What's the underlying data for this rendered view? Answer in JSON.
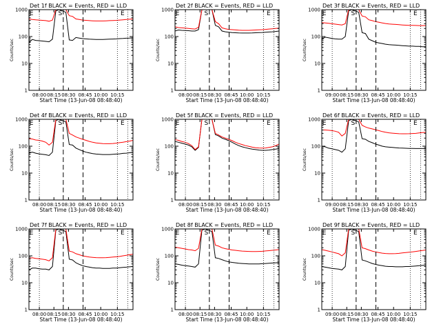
{
  "chart_data": [
    {
      "type": "line",
      "title": "Det 1f BLACK = Events, RED = LLD",
      "xlabel": "Start Time (13-Jun-08 08:48:40)",
      "ylabel": "Counts/sec",
      "yscale": "log",
      "ylim": [
        1,
        1000
      ],
      "y_ticks": [
        "1",
        "10",
        "100",
        "1000"
      ],
      "x_ticks": [
        "08:00",
        "08:15",
        "08:30",
        "08:45",
        "10:00",
        "10:15"
      ],
      "markers": [
        "E",
        "S",
        "E"
      ],
      "series": [
        {
          "color": "#000000",
          "values": [
            60,
            78,
            72,
            70,
            68,
            66,
            64,
            80,
            900,
            1000,
            900,
            800,
            75,
            72,
            92,
            88,
            84,
            82,
            80,
            79,
            78,
            78,
            78,
            79,
            80,
            81,
            82,
            84,
            85,
            87,
            88,
            90
          ]
        },
        {
          "color": "#ff0000",
          "values": [
            450,
            430,
            420,
            410,
            400,
            390,
            370,
            410,
            1000,
            1000,
            1000,
            1000,
            600,
            560,
            450,
            430,
            410,
            400,
            390,
            385,
            380,
            380,
            380,
            385,
            390,
            395,
            400,
            410,
            420,
            430,
            440,
            450
          ]
        }
      ]
    },
    {
      "type": "line",
      "title": "Det 2f BLACK = Events, RED = LLD",
      "xlabel": "Start Time (13-Jun-08 08:48:40)",
      "ylabel": "Counts/sec",
      "yscale": "log",
      "ylim": [
        1,
        1000
      ],
      "y_ticks": [
        "1",
        "10",
        "100",
        "1000"
      ],
      "x_ticks": [
        "08:00",
        "08:15",
        "08:30",
        "08:45",
        "10:00",
        "10:15"
      ],
      "markers": [
        "E",
        "S",
        "E"
      ],
      "series": [
        {
          "color": "#000000",
          "values": [
            160,
            175,
            170,
            168,
            165,
            160,
            160,
            180,
            1000,
            1000,
            1000,
            1000,
            260,
            230,
            160,
            150,
            145,
            140,
            138,
            136,
            135,
            135,
            135,
            136,
            138,
            140,
            142,
            145,
            148,
            150,
            155,
            160
          ]
        },
        {
          "color": "#ff0000",
          "values": [
            230,
            215,
            210,
            205,
            200,
            195,
            190,
            220,
            1000,
            1000,
            1000,
            1000,
            360,
            300,
            210,
            195,
            185,
            180,
            176,
            172,
            170,
            170,
            170,
            172,
            175,
            178,
            180,
            185,
            190,
            195,
            200,
            205
          ]
        }
      ]
    },
    {
      "type": "line",
      "title": "Det 3f BLACK = Events, RED = LLD",
      "xlabel": "Start Time (13-Jun-08 08:48:40)",
      "ylabel": "Counts/sec",
      "yscale": "log",
      "ylim": [
        1,
        1000
      ],
      "y_ticks": [
        "1",
        "10",
        "100",
        "1000"
      ],
      "x_ticks": [
        "09:00",
        "08:15",
        "08:30",
        "08:45",
        "10:00",
        "10:15"
      ],
      "markers": [
        "E",
        "S",
        "E"
      ],
      "series": [
        {
          "color": "#000000",
          "values": [
            80,
            95,
            90,
            85,
            82,
            80,
            80,
            100,
            900,
            1000,
            900,
            800,
            140,
            130,
            80,
            70,
            62,
            58,
            55,
            52,
            50,
            49,
            48,
            47,
            46,
            45,
            44,
            44,
            43,
            43,
            42,
            42
          ]
        },
        {
          "color": "#ff0000",
          "values": [
            330,
            320,
            310,
            300,
            290,
            280,
            270,
            300,
            1000,
            1000,
            1000,
            1000,
            580,
            540,
            420,
            390,
            360,
            340,
            320,
            305,
            295,
            288,
            282,
            276,
            270,
            265,
            262,
            260,
            258,
            256,
            255,
            255
          ]
        }
      ]
    },
    {
      "type": "line",
      "title": "Det 4f BLACK = Events, RED = LLD",
      "xlabel": "Start Time (13-Jun-08 08:48:40)",
      "ylabel": "Counts/sec",
      "yscale": "log",
      "ylim": [
        1,
        1000
      ],
      "y_ticks": [
        "1",
        "10",
        "100",
        "1000"
      ],
      "x_ticks": [
        "08:00",
        "08:15",
        "08:30",
        "08:45",
        "10:00",
        "10:15"
      ],
      "markers": [
        "E",
        "S",
        "E"
      ],
      "series": [
        {
          "color": "#000000",
          "values": [
            55,
            60,
            55,
            52,
            50,
            48,
            45,
            60,
            900,
            1000,
            900,
            800,
            115,
            110,
            85,
            75,
            66,
            60,
            56,
            53,
            51,
            50,
            49,
            49,
            49,
            50,
            51,
            52,
            54,
            55,
            57,
            60
          ]
        },
        {
          "color": "#ff0000",
          "values": [
            190,
            185,
            170,
            165,
            155,
            140,
            110,
            140,
            1000,
            1000,
            1000,
            1000,
            300,
            260,
            220,
            200,
            180,
            165,
            150,
            140,
            132,
            128,
            125,
            124,
            124,
            126,
            130,
            135,
            140,
            148,
            155,
            165
          ]
        }
      ]
    },
    {
      "type": "line",
      "title": "Det 5f BLACK = Events, RED = LLD",
      "xlabel": "Start Time (13-Jun-08 08:48:40)",
      "ylabel": "Counts/sec",
      "yscale": "log",
      "ylim": [
        1,
        1000
      ],
      "y_ticks": [
        "1",
        "10",
        "100",
        "1000"
      ],
      "x_ticks": [
        "08:00",
        "08:15",
        "08:30",
        "08:45",
        "10:00",
        "10:15"
      ],
      "markers": [
        "E",
        "S",
        "E"
      ],
      "series": [
        {
          "color": "#000000",
          "values": [
            150,
            140,
            130,
            120,
            110,
            95,
            70,
            90,
            1000,
            1000,
            1000,
            1000,
            270,
            240,
            200,
            180,
            160,
            140,
            120,
            105,
            95,
            88,
            82,
            78,
            75,
            72,
            70,
            70,
            72,
            75,
            78,
            82
          ]
        },
        {
          "color": "#ff0000",
          "values": [
            175,
            165,
            150,
            140,
            125,
            105,
            75,
            95,
            1000,
            1000,
            1000,
            1000,
            300,
            260,
            220,
            200,
            180,
            160,
            140,
            125,
            115,
            105,
            98,
            92,
            88,
            86,
            85,
            86,
            90,
            95,
            105,
            120
          ]
        }
      ]
    },
    {
      "type": "line",
      "title": "Det 6f BLACK = Events, RED = LLD",
      "xlabel": "Start Time (13-Jun-08 08:48:40)",
      "ylabel": "Counts/sec",
      "yscale": "log",
      "ylim": [
        1,
        1000
      ],
      "y_ticks": [
        "1",
        "10",
        "100",
        "1000"
      ],
      "x_ticks": [
        "09:00",
        "08:15",
        "08:30",
        "08:45",
        "10:00",
        "10:15"
      ],
      "markers": [
        "E",
        "S",
        "E"
      ],
      "series": [
        {
          "color": "#000000",
          "values": [
            100,
            95,
            85,
            80,
            75,
            70,
            60,
            80,
            900,
            1000,
            900,
            800,
            190,
            180,
            150,
            135,
            120,
            110,
            100,
            95,
            92,
            90,
            88,
            86,
            85,
            84,
            83,
            83,
            82,
            82,
            82,
            82
          ]
        },
        {
          "color": "#ff0000",
          "values": [
            400,
            400,
            390,
            380,
            360,
            330,
            240,
            300,
            1000,
            1000,
            1000,
            1000,
            600,
            520,
            470,
            440,
            410,
            380,
            350,
            330,
            315,
            305,
            298,
            292,
            290,
            290,
            292,
            296,
            300,
            310,
            320,
            330
          ]
        }
      ]
    },
    {
      "type": "line",
      "title": "Det 7f BLACK = Events, RED = LLD",
      "xlabel": "Start Time (13-Jun-08 08:48:40)",
      "ylabel": "Counts/sec",
      "yscale": "log",
      "ylim": [
        1,
        1000
      ],
      "y_ticks": [
        "1",
        "10",
        "100",
        "1000"
      ],
      "x_ticks": [
        "08:00",
        "08:15",
        "08:30",
        "08:45",
        "10:00",
        "10:15"
      ],
      "markers": [
        "E",
        "S",
        "E"
      ],
      "series": [
        {
          "color": "#000000",
          "values": [
            30,
            35,
            35,
            33,
            32,
            32,
            30,
            40,
            900,
            1000,
            900,
            800,
            75,
            70,
            55,
            48,
            43,
            40,
            38,
            36,
            35,
            35,
            34,
            34,
            34,
            35,
            35,
            36,
            37,
            38,
            39,
            40
          ]
        },
        {
          "color": "#ff0000",
          "values": [
            80,
            85,
            80,
            78,
            75,
            72,
            65,
            85,
            1000,
            1000,
            1000,
            1000,
            150,
            140,
            120,
            110,
            100,
            95,
            90,
            88,
            86,
            85,
            85,
            86,
            88,
            90,
            92,
            95,
            100,
            105,
            110,
            115
          ]
        }
      ]
    },
    {
      "type": "line",
      "title": "Det 8f BLACK = Events, RED = LLD",
      "xlabel": "Start Time (13-Jun-08 08:48:40)",
      "ylabel": "Counts/sec",
      "yscale": "log",
      "ylim": [
        1,
        1000
      ],
      "y_ticks": [
        "1",
        "10",
        "100",
        "1000"
      ],
      "x_ticks": [
        "08:00",
        "08:15",
        "08:30",
        "08:45",
        "10:00",
        "10:15"
      ],
      "markers": [
        "E",
        "S",
        "E"
      ],
      "series": [
        {
          "color": "#000000",
          "values": [
            50,
            48,
            45,
            43,
            42,
            40,
            38,
            50,
            900,
            1000,
            900,
            800,
            85,
            80,
            72,
            65,
            60,
            57,
            55,
            53,
            52,
            51,
            50,
            50,
            50,
            50,
            51,
            52,
            53,
            54,
            55,
            56
          ]
        },
        {
          "color": "#ff0000",
          "values": [
            210,
            200,
            190,
            180,
            170,
            165,
            155,
            190,
            1000,
            1000,
            1000,
            1000,
            250,
            230,
            200,
            185,
            175,
            165,
            160,
            155,
            150,
            148,
            146,
            145,
            145,
            146,
            148,
            152,
            156,
            160,
            165,
            170
          ]
        }
      ]
    },
    {
      "type": "line",
      "title": "Det 9f BLACK = Events, RED = LLD",
      "xlabel": "Start Time (13-Jun-08 08:48:40)",
      "ylabel": "Counts/sec",
      "yscale": "log",
      "ylim": [
        1,
        1000
      ],
      "y_ticks": [
        "1",
        "10",
        "100",
        "1000"
      ],
      "x_ticks": [
        "09:00",
        "08:15",
        "08:30",
        "08:45",
        "10:00",
        "10:15"
      ],
      "markers": [
        "E",
        "S",
        "E"
      ],
      "series": [
        {
          "color": "#000000",
          "values": [
            40,
            38,
            36,
            34,
            33,
            32,
            30,
            40,
            900,
            1000,
            900,
            800,
            70,
            65,
            58,
            52,
            48,
            45,
            43,
            41,
            40,
            40,
            39,
            39,
            39,
            40,
            40,
            41,
            42,
            43,
            44,
            45
          ]
        },
        {
          "color": "#ff0000",
          "values": [
            170,
            160,
            150,
            140,
            130,
            120,
            100,
            130,
            1000,
            1000,
            1000,
            1000,
            200,
            185,
            165,
            150,
            140,
            132,
            126,
            122,
            120,
            120,
            121,
            124,
            128,
            132,
            136,
            140,
            146,
            152,
            158,
            165
          ]
        }
      ]
    }
  ]
}
